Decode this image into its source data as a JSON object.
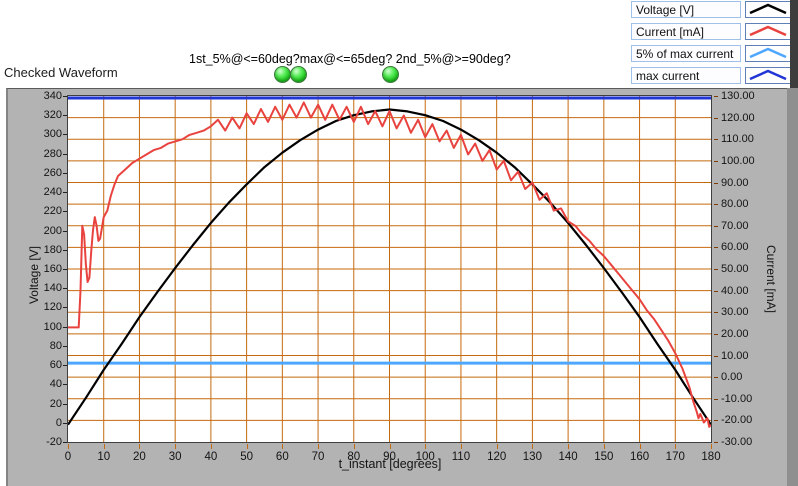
{
  "title": "Checked Waveform",
  "question_text": "1st_5%@<=60deg?max@<=65deg? 2nd_5%@>=90deg?",
  "indicators": {
    "led_states": [
      "on",
      "on",
      "on"
    ],
    "on_color": "#33cc33"
  },
  "legend": {
    "items": [
      {
        "label": "Voltage [V]",
        "color": "#000000"
      },
      {
        "label": "Current [mA]",
        "color": "#e8433f"
      },
      {
        "label": "5% of max current",
        "color": "#4da6ff"
      },
      {
        "label": "max current",
        "color": "#2136d4"
      }
    ]
  },
  "chart_data": {
    "type": "line",
    "title": "Checked Waveform",
    "x_axis": {
      "label": "t_instant [degrees]",
      "min": 0,
      "max": 180,
      "tick_step": 10
    },
    "y_axis_left": {
      "label": "Voltage [V]",
      "min": -20,
      "max": 340,
      "tick_step": 20
    },
    "y_axis_right": {
      "label": "Current [mA]",
      "min": -30,
      "max": 130,
      "tick_step": 10,
      "tick_decimals": 2
    },
    "grid": {
      "color": "#c56a0e",
      "horizontal_every_mA": 10,
      "vertical_every_deg": 10
    },
    "plot_bg": "#ffffff",
    "series": [
      {
        "name": "Voltage [V]",
        "axis": "left",
        "color": "#000000",
        "width": 2.2,
        "points": [
          [
            0,
            -2
          ],
          [
            5,
            26
          ],
          [
            10,
            55
          ],
          [
            15,
            82
          ],
          [
            20,
            110
          ],
          [
            25,
            136
          ],
          [
            30,
            161
          ],
          [
            35,
            185
          ],
          [
            40,
            208
          ],
          [
            45,
            229
          ],
          [
            50,
            248
          ],
          [
            55,
            266
          ],
          [
            60,
            281
          ],
          [
            65,
            294
          ],
          [
            70,
            305
          ],
          [
            75,
            314
          ],
          [
            80,
            320
          ],
          [
            85,
            324
          ],
          [
            90,
            326
          ],
          [
            95,
            324
          ],
          [
            100,
            320
          ],
          [
            105,
            314
          ],
          [
            110,
            305
          ],
          [
            115,
            294
          ],
          [
            120,
            281
          ],
          [
            125,
            266
          ],
          [
            130,
            248
          ],
          [
            135,
            229
          ],
          [
            140,
            208
          ],
          [
            145,
            185
          ],
          [
            150,
            161
          ],
          [
            155,
            136
          ],
          [
            160,
            110
          ],
          [
            165,
            82
          ],
          [
            170,
            55
          ],
          [
            175,
            26
          ],
          [
            180,
            -2
          ]
        ]
      },
      {
        "name": "Current [mA]",
        "axis": "right",
        "color": "#e8433f",
        "width": 2,
        "points": [
          [
            0,
            23
          ],
          [
            1,
            23
          ],
          [
            2,
            23
          ],
          [
            3,
            23
          ],
          [
            3.5,
            40
          ],
          [
            4,
            70
          ],
          [
            4.5,
            66
          ],
          [
            5,
            52
          ],
          [
            5.5,
            44
          ],
          [
            6,
            46
          ],
          [
            6.5,
            58
          ],
          [
            7,
            68
          ],
          [
            7.5,
            74
          ],
          [
            8,
            70
          ],
          [
            8.5,
            63
          ],
          [
            9,
            64
          ],
          [
            9.5,
            69
          ],
          [
            10,
            74
          ],
          [
            11,
            77
          ],
          [
            12,
            84
          ],
          [
            13,
            89
          ],
          [
            14,
            93
          ],
          [
            16,
            96
          ],
          [
            18,
            99
          ],
          [
            20,
            101
          ],
          [
            22,
            103
          ],
          [
            24,
            105
          ],
          [
            26,
            106
          ],
          [
            28,
            108
          ],
          [
            30,
            109
          ],
          [
            32,
            110
          ],
          [
            34,
            112
          ],
          [
            36,
            113
          ],
          [
            38,
            114
          ],
          [
            40,
            116
          ],
          [
            42,
            119
          ],
          [
            44,
            114
          ],
          [
            46,
            120
          ],
          [
            48,
            115
          ],
          [
            50,
            122
          ],
          [
            52,
            117
          ],
          [
            54,
            124
          ],
          [
            56,
            118
          ],
          [
            58,
            125
          ],
          [
            60,
            119
          ],
          [
            62,
            126
          ],
          [
            64,
            120
          ],
          [
            66,
            127
          ],
          [
            68,
            120
          ],
          [
            70,
            126
          ],
          [
            72,
            119
          ],
          [
            74,
            126
          ],
          [
            76,
            119
          ],
          [
            78,
            125
          ],
          [
            80,
            118
          ],
          [
            82,
            125
          ],
          [
            84,
            117
          ],
          [
            86,
            123
          ],
          [
            88,
            116
          ],
          [
            90,
            123
          ],
          [
            92,
            115
          ],
          [
            94,
            121
          ],
          [
            96,
            113
          ],
          [
            98,
            119
          ],
          [
            100,
            111
          ],
          [
            102,
            117
          ],
          [
            104,
            109
          ],
          [
            106,
            114
          ],
          [
            108,
            106
          ],
          [
            110,
            112
          ],
          [
            112,
            103
          ],
          [
            114,
            108
          ],
          [
            116,
            100
          ],
          [
            118,
            105
          ],
          [
            120,
            96
          ],
          [
            122,
            100
          ],
          [
            124,
            91
          ],
          [
            126,
            95
          ],
          [
            128,
            87
          ],
          [
            130,
            90
          ],
          [
            132,
            82
          ],
          [
            134,
            85
          ],
          [
            136,
            77
          ],
          [
            138,
            78
          ],
          [
            140,
            72
          ],
          [
            142,
            70
          ],
          [
            144,
            66
          ],
          [
            146,
            63
          ],
          [
            148,
            59
          ],
          [
            150,
            56
          ],
          [
            152,
            52
          ],
          [
            154,
            48
          ],
          [
            156,
            44
          ],
          [
            158,
            40
          ],
          [
            160,
            36
          ],
          [
            162,
            31
          ],
          [
            164,
            27
          ],
          [
            166,
            22
          ],
          [
            168,
            17
          ],
          [
            170,
            11
          ],
          [
            172,
            4
          ],
          [
            174,
            -5
          ],
          [
            175,
            -11
          ],
          [
            176,
            -16
          ],
          [
            176.5,
            -19
          ],
          [
            177,
            -17
          ],
          [
            178,
            -21
          ],
          [
            179,
            -19
          ],
          [
            179.5,
            -23
          ],
          [
            180,
            -22
          ]
        ]
      },
      {
        "name": "5% of max current",
        "axis": "right",
        "color": "#4da6ff",
        "width": 3,
        "value": 6.5
      },
      {
        "name": "max current",
        "axis": "right",
        "color": "#2136d4",
        "width": 3,
        "value": 130
      }
    ]
  }
}
